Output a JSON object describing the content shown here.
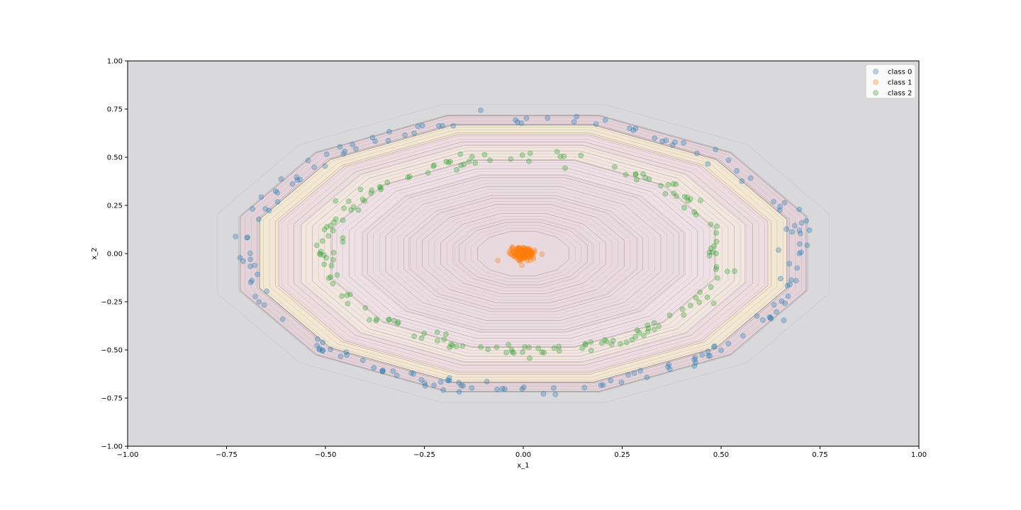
{
  "chart_data": {
    "type": "scatter",
    "title": "",
    "xlabel": "x_1",
    "ylabel": "x_2",
    "xlim": [
      -1.0,
      1.0
    ],
    "ylim": [
      -1.0,
      1.0
    ],
    "xticks": [
      "−1.00",
      "−0.75",
      "−0.50",
      "−0.25",
      "0.00",
      "0.25",
      "0.50",
      "0.75",
      "1.00"
    ],
    "yticks": [
      "−1.00",
      "−0.75",
      "−0.50",
      "−0.25",
      "0.00",
      "0.25",
      "0.50",
      "0.75",
      "1.00"
    ],
    "grid": false,
    "legend_position": "top-right",
    "background": "decision-contour",
    "series": [
      {
        "name": "class 0",
        "color": "#1f77b4",
        "shape": "ring",
        "rx": 0.7,
        "ry": 0.7,
        "count": 180,
        "noise": 0.02
      },
      {
        "name": "class 1",
        "color": "#ff7f0e",
        "shape": "cluster",
        "cx": 0.0,
        "cy": 0.0,
        "spread": 0.015,
        "count": 180
      },
      {
        "name": "class 2",
        "color": "#2ca02c",
        "shape": "ring",
        "rx": 0.5,
        "ry": 0.5,
        "count": 180,
        "noise": 0.02
      }
    ]
  }
}
